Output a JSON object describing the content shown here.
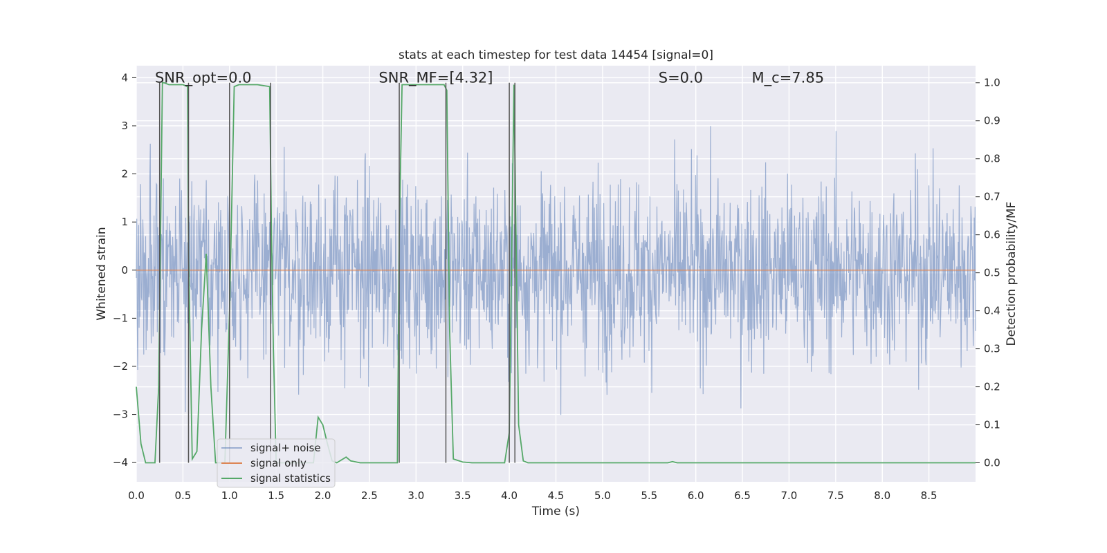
{
  "chart_data": {
    "type": "line",
    "title": "stats at each timestep for test data 14454 [signal=0]",
    "xlabel": "Time (s)",
    "ylabel_left": "Whitened strain",
    "ylabel_right": "Detection probability/MF",
    "xlim": [
      0,
      9.0
    ],
    "ylim_left": [
      -4.4,
      4.25
    ],
    "ylim_right": [
      -0.05,
      1.045
    ],
    "xticks": [
      "0.0",
      "0.5",
      "1.0",
      "1.5",
      "2.0",
      "2.5",
      "3.0",
      "3.5",
      "4.0",
      "4.5",
      "5.0",
      "5.5",
      "6.0",
      "6.5",
      "7.0",
      "7.5",
      "8.0",
      "8.5"
    ],
    "xtick_values": [
      0,
      0.5,
      1,
      1.5,
      2,
      2.5,
      3,
      3.5,
      4,
      4.5,
      5,
      5.5,
      6,
      6.5,
      7,
      7.5,
      8,
      8.5
    ],
    "yticks_left": [
      "−4",
      "−3",
      "−2",
      "−1",
      "0",
      "1",
      "2",
      "3",
      "4"
    ],
    "ytick_values_left": [
      -4,
      -3,
      -2,
      -1,
      0,
      1,
      2,
      3,
      4
    ],
    "yticks_right": [
      "0.0",
      "0.1",
      "0.2",
      "0.3",
      "0.4",
      "0.5",
      "0.6",
      "0.7",
      "0.8",
      "0.9",
      "1.0"
    ],
    "ytick_values_right": [
      0,
      0.1,
      0.2,
      0.3,
      0.4,
      0.5,
      0.6,
      0.7,
      0.8,
      0.9,
      1.0
    ],
    "grid": true,
    "legend_placement": "lower-left",
    "annotations": [
      {
        "text": "SNR_opt=0.0",
        "x": 0.2,
        "y": 3.9,
        "axis": "left"
      },
      {
        "text": "SNR_MF=[4.32]",
        "x": 2.6,
        "y": 3.9,
        "axis": "left",
        "math": "SNR"
      },
      {
        "text": "S=0.0",
        "x": 5.6,
        "y": 3.9,
        "axis": "left",
        "math": "S"
      },
      {
        "text": "M_c=7.85",
        "x": 6.6,
        "y": 3.9,
        "axis": "left",
        "math": "Mc"
      }
    ],
    "series": [
      {
        "name": "signal+ noise",
        "axis": "left",
        "color": "#4c72b0",
        "alpha": 0.5,
        "kind": "noise",
        "duration": 9.0,
        "samples": 1800,
        "typical_range": [
          -1.7,
          1.5
        ],
        "extreme_range": [
          -3.7,
          4.0
        ]
      },
      {
        "name": "signal only",
        "axis": "left",
        "color": "#dd8452",
        "x": [
          0,
          9.0
        ],
        "y": [
          0,
          0
        ]
      },
      {
        "name": "signal statistics",
        "axis": "right",
        "color": "#55a868",
        "x": [
          0,
          0.05,
          0.1,
          0.15,
          0.2,
          0.24,
          0.28,
          0.3,
          0.35,
          0.5,
          0.55,
          0.56,
          0.6,
          0.65,
          0.7,
          0.75,
          0.8,
          0.85,
          0.9,
          0.95,
          1.0,
          1.05,
          1.1,
          1.3,
          1.43,
          1.45,
          1.47,
          1.5,
          1.7,
          1.9,
          1.95,
          2.0,
          2.05,
          2.1,
          2.15,
          2.25,
          2.3,
          2.4,
          2.6,
          2.8,
          2.82,
          2.85,
          2.9,
          3.3,
          3.33,
          3.36,
          3.4,
          3.5,
          3.6,
          3.8,
          3.95,
          4.0,
          4.05,
          4.1,
          4.15,
          4.2,
          4.5,
          5.0,
          5.7,
          5.75,
          5.8,
          6.0,
          9.0
        ],
        "y": [
          0.2,
          0.05,
          0.0,
          0.0,
          0.0,
          0.2,
          1.0,
          1.0,
          0.995,
          0.995,
          0.99,
          0.55,
          0.01,
          0.03,
          0.35,
          0.55,
          0.2,
          0.0,
          0.0,
          0.0,
          0.4,
          0.99,
          0.995,
          0.995,
          0.99,
          0.6,
          0.3,
          0.0,
          0.0,
          0.0,
          0.12,
          0.1,
          0.05,
          0.005,
          0.0,
          0.015,
          0.005,
          0.0,
          0.0,
          0.0,
          0.6,
          0.995,
          0.995,
          0.995,
          0.98,
          0.35,
          0.01,
          0.002,
          0.0,
          0.0,
          0.0,
          0.08,
          0.995,
          0.1,
          0.005,
          0.0,
          0.0,
          0.0,
          0.0,
          0.003,
          0.0,
          0.0,
          0.0
        ]
      }
    ],
    "vertical_lines": {
      "color": "#555555",
      "x": [
        0.25,
        0.56,
        1.0,
        1.44,
        2.82,
        3.32,
        4.0,
        4.06
      ],
      "y_range_right": [
        0.0,
        1.0
      ]
    }
  }
}
